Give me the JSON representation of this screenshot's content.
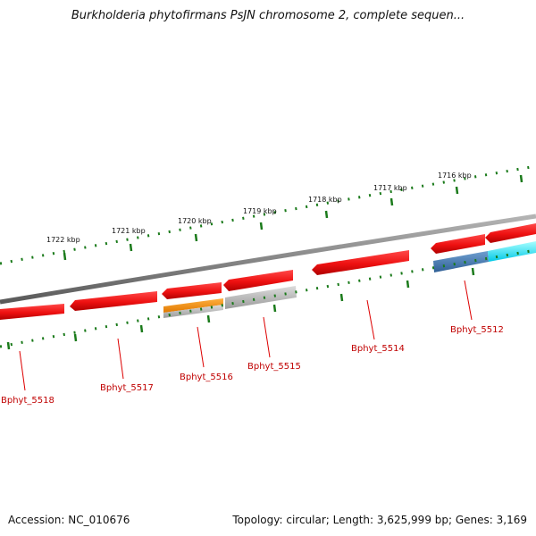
{
  "title": "Burkholderia phytofirmans PsJN chromosome 2, complete sequen...",
  "footer": {
    "accession": "Accession: NC_010676",
    "summary": "Topology: circular; Length: 3,625,999 bp; Genes: 3,169"
  },
  "colors": {
    "gene_red": "#ee1111",
    "gene_orange": "#f08a0a",
    "gene_gray": "#c0c0c0",
    "gene_steelblue": "#4a7ab0",
    "gene_cyan": "#00eeff",
    "backbone": "#808080",
    "tick_green": "#1a7a1a",
    "label_red": "#c00000"
  },
  "scale_labels": [
    "1716 kbp",
    "1717 kbp",
    "1718 kbp",
    "1719 kbp",
    "1720 kbp",
    "1721 kbp",
    "1722 kbp"
  ],
  "gene_labels": [
    "Bphyt_5512",
    "Bphyt_5514",
    "Bphyt_5515",
    "Bphyt_5516",
    "Bphyt_5517",
    "Bphyt_5518"
  ]
}
